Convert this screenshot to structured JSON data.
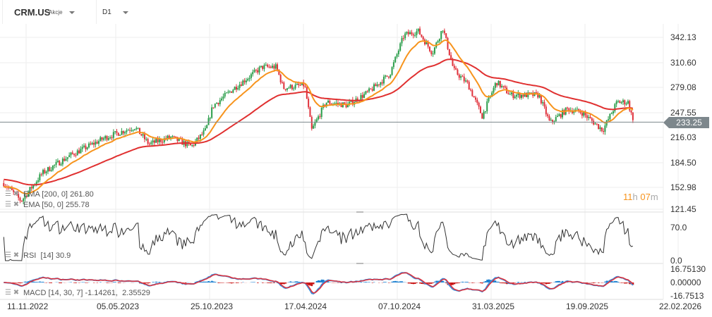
{
  "header": {
    "symbol": "CRM.US",
    "asset_type": "Akcje",
    "timeframe": "D1"
  },
  "price_axis": {
    "ticks": [
      "342.13",
      "310.60",
      "279.08",
      "247.55",
      "216.03",
      "184.50",
      "152.98",
      "121.45"
    ],
    "current_price": "233.25",
    "current_price_value": 233.25
  },
  "countdown": {
    "hours": "11",
    "h": "h",
    "minutes": "07",
    "m": "m",
    "color": "#f7941d"
  },
  "indicators": {
    "ema200": {
      "label": "EMA",
      "params": "[200, 0]",
      "value": "261.80",
      "color": "#e03030"
    },
    "ema50": {
      "label": "EMA",
      "params": "[50, 0]",
      "value": "255.78",
      "color": "#f7941d"
    },
    "rsi": {
      "label": "RSI",
      "params": "[14]",
      "value": "30.9",
      "ticks": [
        "70.0",
        "0.0"
      ]
    },
    "macd": {
      "label": "MACD",
      "params": "[14, 30, 7]",
      "value1": "-1.14261",
      "value2": "2.35529",
      "ticks": [
        "16.75130",
        "0.00000",
        "-16.7513"
      ]
    }
  },
  "date_axis": [
    "11.11.2022",
    "05.05.2023",
    "25.10.2023",
    "17.04.2024",
    "07.10.2024",
    "31.03.2025",
    "19.09.2025",
    "22.02.2026"
  ],
  "colors": {
    "up": "#2a9d4a",
    "down": "#e0303a",
    "macd_pos": "#1a7fd0",
    "macd_neg": "#c81414",
    "signal_blue": "#3a8fdc"
  },
  "chart_data": {
    "type": "candlestick",
    "price_range": [
      121.45,
      342.13
    ],
    "close_keypoints": [
      [
        "2022-10-01",
        155
      ],
      [
        "2022-11-02",
        132
      ],
      [
        "2022-12-11",
        168
      ],
      [
        "2023-02-01",
        191
      ],
      [
        "2023-04-07",
        214
      ],
      [
        "2023-05-29",
        227
      ],
      [
        "2023-06-24",
        205
      ],
      [
        "2023-08-02",
        214
      ],
      [
        "2023-09-10",
        202
      ],
      [
        "2023-10-06",
        223
      ],
      [
        "2023-10-19",
        254
      ],
      [
        "2023-11-27",
        277
      ],
      [
        "2024-01-17",
        304
      ],
      [
        "2024-02-12",
        304
      ],
      [
        "2024-02-25",
        277
      ],
      [
        "2024-04-04",
        281
      ],
      [
        "2024-04-17",
        223
      ],
      [
        "2024-05-13",
        259
      ],
      [
        "2024-06-21",
        255
      ],
      [
        "2024-07-30",
        272
      ],
      [
        "2024-09-07",
        295
      ],
      [
        "2024-10-03",
        345
      ],
      [
        "2024-10-29",
        350
      ],
      [
        "2024-11-24",
        322
      ],
      [
        "2024-12-13",
        354
      ],
      [
        "2025-01-02",
        300
      ],
      [
        "2025-01-28",
        282
      ],
      [
        "2025-02-23",
        241
      ],
      [
        "2025-03-21",
        285
      ],
      [
        "2025-04-16",
        268
      ],
      [
        "2025-06-07",
        268
      ],
      [
        "2025-06-27",
        232
      ],
      [
        "2025-07-29",
        250
      ],
      [
        "2025-08-24",
        246
      ],
      [
        "2025-10-02",
        223
      ],
      [
        "2025-10-28",
        259
      ],
      [
        "2025-11-17",
        259
      ],
      [
        "2025-11-27",
        233.25
      ]
    ]
  }
}
